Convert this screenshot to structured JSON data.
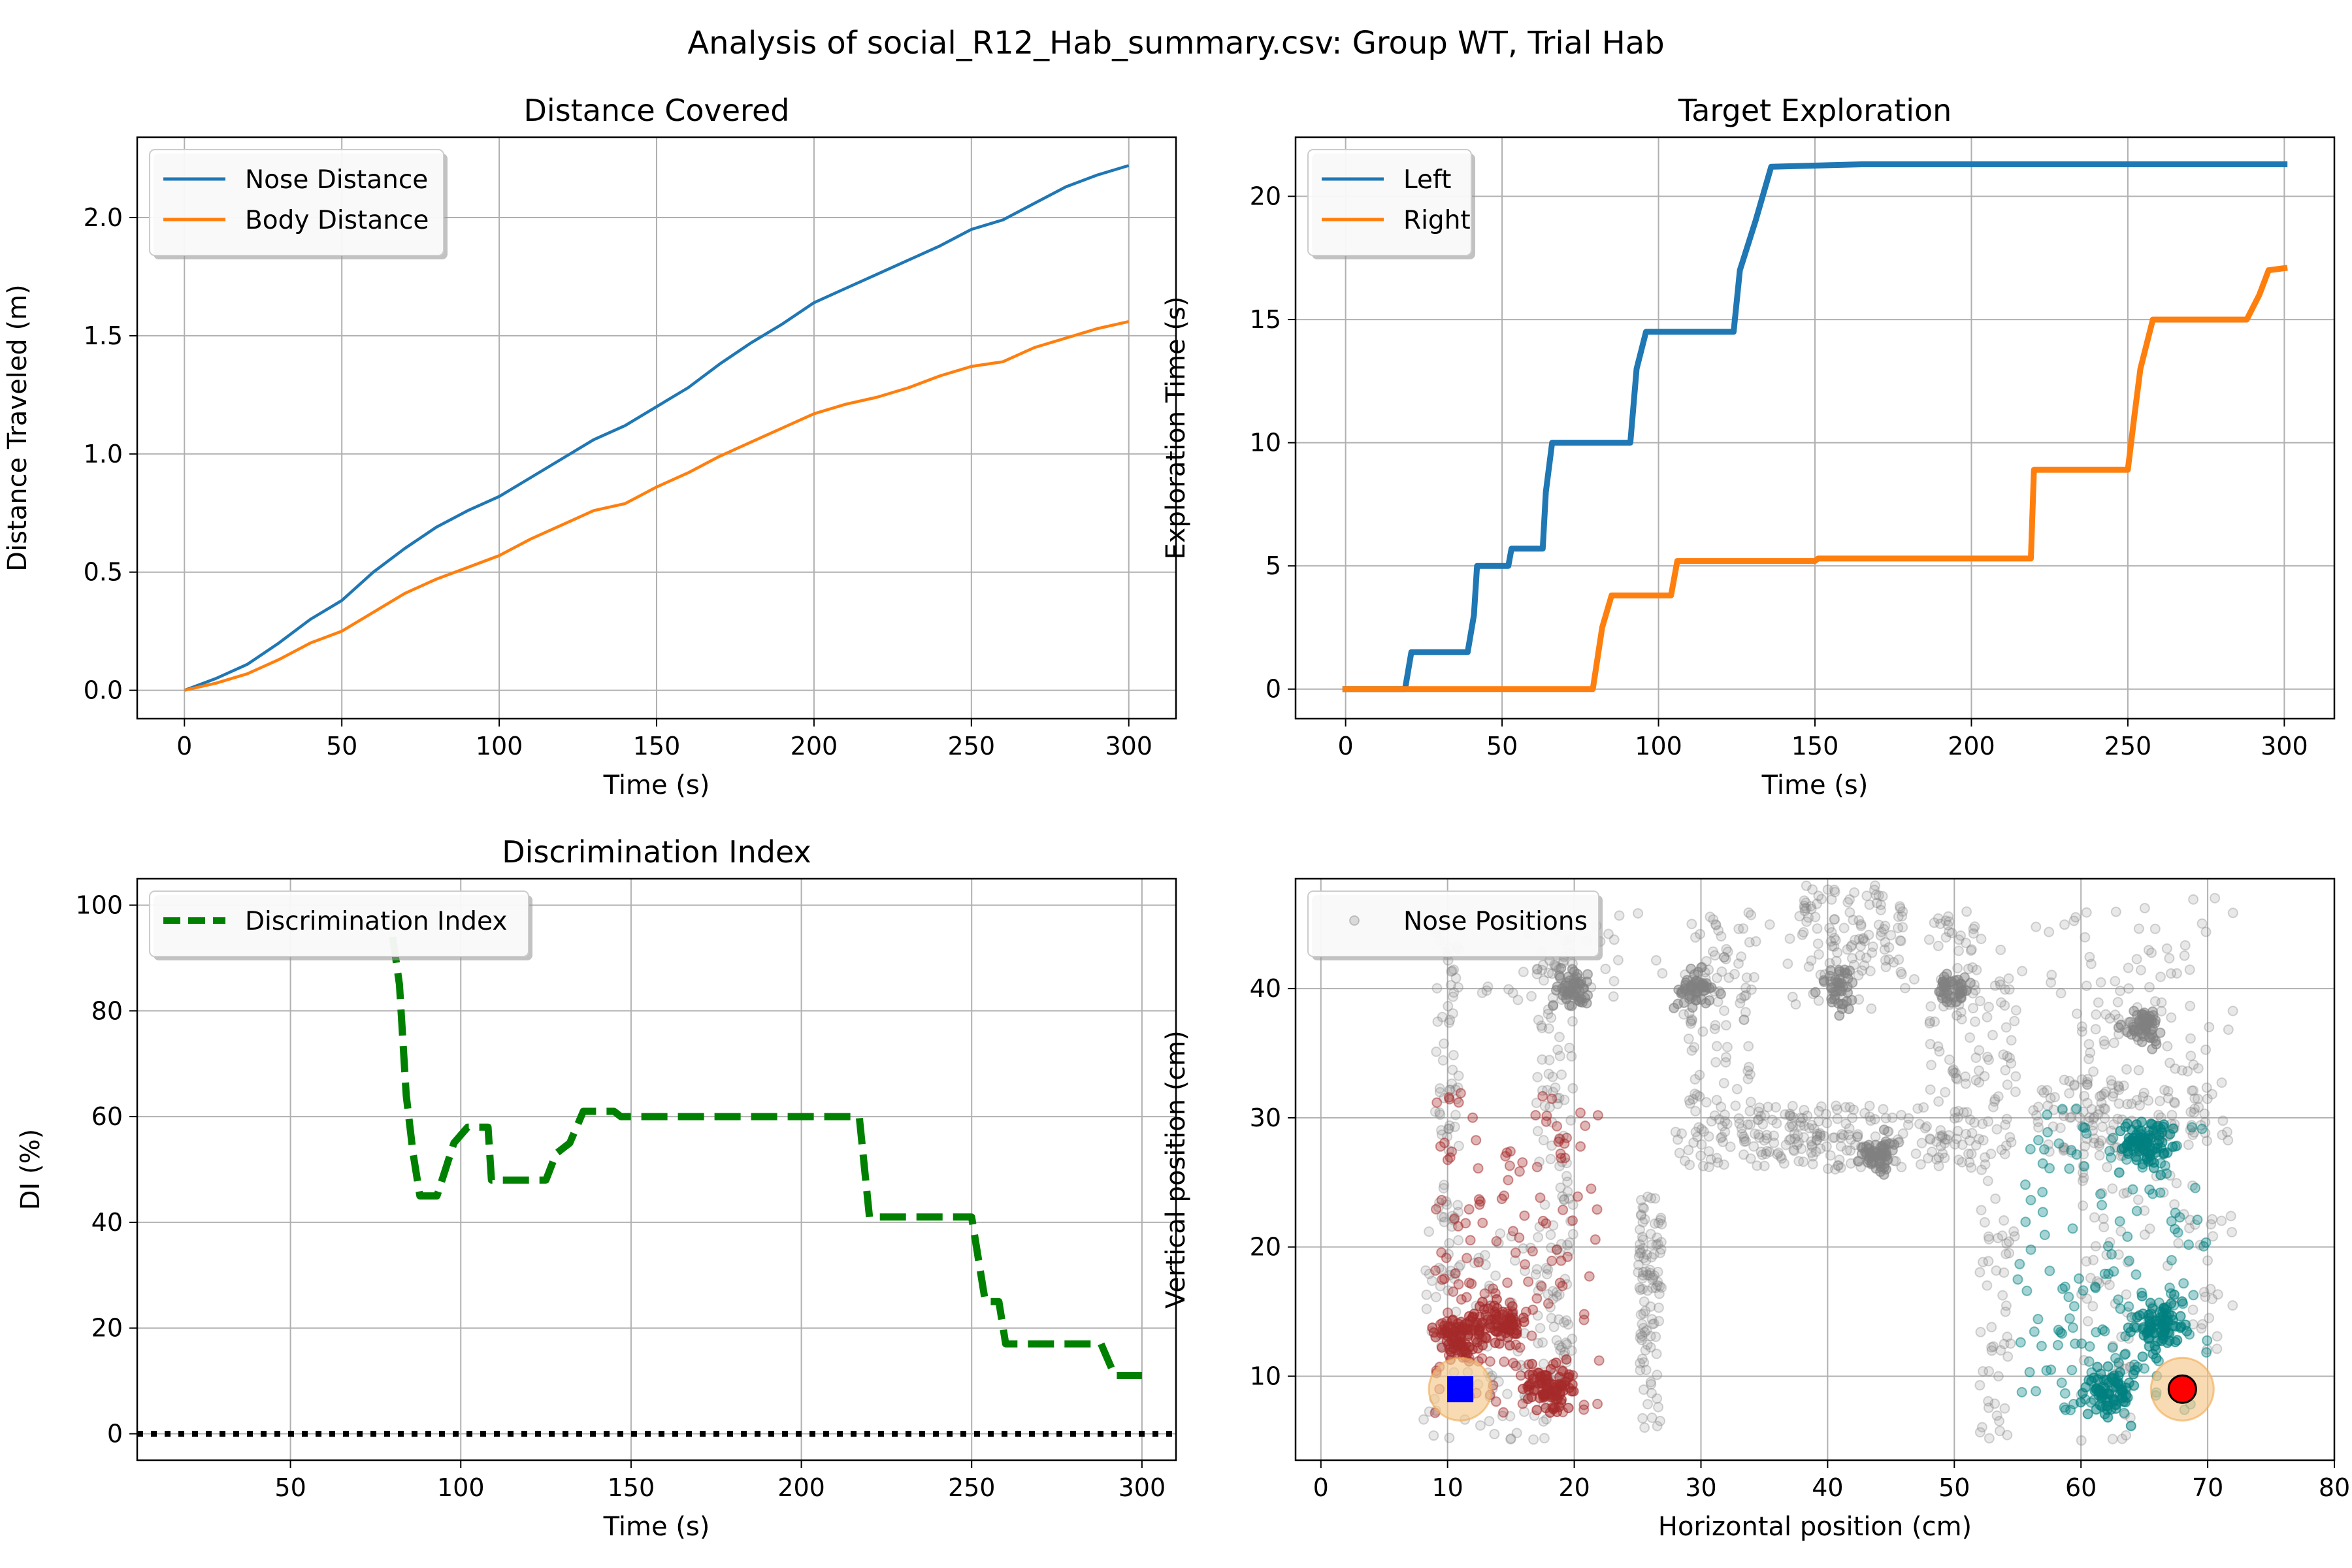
{
  "figure": {
    "suptitle": "Analysis of social_R12_Hab_summary.csv: Group WT, Trial Hab"
  },
  "colors": {
    "blue": "#1f77b4",
    "orange": "#ff7f0e",
    "green": "#008000",
    "grid": "#b0b0b0",
    "gray_points": "#808080",
    "red_points": "#a52a2a",
    "teal_points": "#008080",
    "object_halo": "#f5c78a"
  },
  "chart_data": [
    {
      "id": "distance",
      "type": "line",
      "title": "Distance Covered",
      "xlabel": "Time (s)",
      "ylabel": "Distance Traveled (m)",
      "xlim": [
        -15,
        315
      ],
      "ylim": [
        -0.12,
        2.34
      ],
      "xticks": [
        0,
        50,
        100,
        150,
        200,
        250,
        300
      ],
      "yticks": [
        0.0,
        0.5,
        1.0,
        1.5,
        2.0
      ],
      "ytick_labels": [
        "0.0",
        "0.5",
        "1.0",
        "1.5",
        "2.0"
      ],
      "grid": true,
      "legend": "upper-left",
      "series": [
        {
          "name": "Nose Distance",
          "color": "#1f77b4",
          "style": "solid",
          "points": [
            [
              0,
              0
            ],
            [
              10,
              0.05
            ],
            [
              20,
              0.11
            ],
            [
              30,
              0.2
            ],
            [
              40,
              0.3
            ],
            [
              50,
              0.38
            ],
            [
              60,
              0.5
            ],
            [
              70,
              0.6
            ],
            [
              80,
              0.69
            ],
            [
              90,
              0.76
            ],
            [
              100,
              0.82
            ],
            [
              110,
              0.9
            ],
            [
              120,
              0.98
            ],
            [
              130,
              1.06
            ],
            [
              140,
              1.12
            ],
            [
              150,
              1.2
            ],
            [
              160,
              1.28
            ],
            [
              170,
              1.38
            ],
            [
              180,
              1.47
            ],
            [
              190,
              1.55
            ],
            [
              200,
              1.64
            ],
            [
              210,
              1.7
            ],
            [
              220,
              1.76
            ],
            [
              230,
              1.82
            ],
            [
              240,
              1.88
            ],
            [
              250,
              1.95
            ],
            [
              260,
              1.99
            ],
            [
              270,
              2.06
            ],
            [
              280,
              2.13
            ],
            [
              290,
              2.18
            ],
            [
              300,
              2.22
            ]
          ]
        },
        {
          "name": "Body Distance",
          "color": "#ff7f0e",
          "style": "solid",
          "points": [
            [
              0,
              0
            ],
            [
              10,
              0.03
            ],
            [
              20,
              0.07
            ],
            [
              30,
              0.13
            ],
            [
              40,
              0.2
            ],
            [
              50,
              0.25
            ],
            [
              60,
              0.33
            ],
            [
              70,
              0.41
            ],
            [
              80,
              0.47
            ],
            [
              90,
              0.52
            ],
            [
              100,
              0.57
            ],
            [
              110,
              0.64
            ],
            [
              120,
              0.7
            ],
            [
              130,
              0.76
            ],
            [
              140,
              0.79
            ],
            [
              150,
              0.86
            ],
            [
              160,
              0.92
            ],
            [
              170,
              0.99
            ],
            [
              180,
              1.05
            ],
            [
              190,
              1.11
            ],
            [
              200,
              1.17
            ],
            [
              210,
              1.21
            ],
            [
              220,
              1.24
            ],
            [
              230,
              1.28
            ],
            [
              240,
              1.33
            ],
            [
              250,
              1.37
            ],
            [
              260,
              1.39
            ],
            [
              270,
              1.45
            ],
            [
              280,
              1.49
            ],
            [
              290,
              1.53
            ],
            [
              300,
              1.56
            ]
          ]
        }
      ]
    },
    {
      "id": "exploration",
      "type": "line",
      "title": "Target Exploration",
      "xlabel": "Time (s)",
      "ylabel": "Exploration Time (s)",
      "xlim": [
        -16,
        316
      ],
      "ylim": [
        -1.2,
        22.4
      ],
      "xticks": [
        0,
        50,
        100,
        150,
        200,
        250,
        300
      ],
      "yticks": [
        0,
        5,
        10,
        15,
        20
      ],
      "ytick_labels": [
        "0",
        "5",
        "10",
        "15",
        "20"
      ],
      "grid": true,
      "legend": "upper-left",
      "series": [
        {
          "name": "Left",
          "color": "#1f77b4",
          "style": "step",
          "points": [
            [
              -1,
              0
            ],
            [
              19,
              0
            ],
            [
              21,
              1.5
            ],
            [
              39,
              1.5
            ],
            [
              41,
              3.0
            ],
            [
              42,
              5.0
            ],
            [
              52,
              5.0
            ],
            [
              53,
              5.7
            ],
            [
              63,
              5.7
            ],
            [
              64,
              8.0
            ],
            [
              66,
              10.0
            ],
            [
              91,
              10.0
            ],
            [
              93,
              13.0
            ],
            [
              96,
              14.5
            ],
            [
              124,
              14.5
            ],
            [
              126,
              17.0
            ],
            [
              131,
              19.0
            ],
            [
              136,
              21.2
            ],
            [
              165,
              21.3
            ],
            [
              301,
              21.3
            ]
          ]
        },
        {
          "name": "Right",
          "color": "#ff7f0e",
          "style": "step",
          "points": [
            [
              -1,
              0
            ],
            [
              79,
              0
            ],
            [
              82,
              2.5
            ],
            [
              85,
              3.8
            ],
            [
              104,
              3.8
            ],
            [
              106,
              5.2
            ],
            [
              150,
              5.2
            ],
            [
              151,
              5.3
            ],
            [
              219,
              5.3
            ],
            [
              220,
              8.9
            ],
            [
              250,
              8.9
            ],
            [
              252,
              11.0
            ],
            [
              254,
              13.0
            ],
            [
              258,
              15.0
            ],
            [
              288,
              15.0
            ],
            [
              292,
              16.0
            ],
            [
              295,
              17.0
            ],
            [
              301,
              17.1
            ]
          ]
        }
      ]
    },
    {
      "id": "di",
      "type": "line",
      "title": "Discrimination Index",
      "xlabel": "Time (s)",
      "ylabel": "DI (%)",
      "xlim": [
        5,
        310
      ],
      "ylim": [
        -5,
        105
      ],
      "xticks": [
        50,
        100,
        150,
        200,
        250,
        300
      ],
      "yticks": [
        0,
        20,
        40,
        60,
        80,
        100
      ],
      "ytick_labels": [
        "0",
        "20",
        "40",
        "60",
        "80",
        "100"
      ],
      "grid": true,
      "legend": "upper-left",
      "series": [
        {
          "name": "Discrimination Index",
          "color": "#008000",
          "style": "dashed",
          "points": [
            [
              80,
              94
            ],
            [
              82,
              85
            ],
            [
              84,
              64
            ],
            [
              86,
              53
            ],
            [
              88,
              45
            ],
            [
              93,
              45
            ],
            [
              98,
              55
            ],
            [
              102,
              58
            ],
            [
              108,
              58
            ],
            [
              109,
              48
            ],
            [
              125,
              48
            ],
            [
              128,
              53
            ],
            [
              132,
              55
            ],
            [
              136,
              61
            ],
            [
              145,
              61
            ],
            [
              147,
              60
            ],
            [
              217,
              60
            ],
            [
              220,
              41
            ],
            [
              250,
              41
            ],
            [
              254,
              25
            ],
            [
              258,
              25
            ],
            [
              260,
              17
            ],
            [
              288,
              17
            ],
            [
              292,
              11
            ],
            [
              300,
              11
            ]
          ]
        },
        {
          "name": "",
          "color": "#000000",
          "style": "dotted-baseline",
          "points": [
            [
              5,
              0
            ],
            [
              310,
              0
            ]
          ]
        }
      ]
    },
    {
      "id": "positions",
      "type": "scatter",
      "title": "",
      "xlabel": "Horizontal position (cm)",
      "ylabel": "Vertical position (cm)",
      "xlim": [
        -2,
        80
      ],
      "ylim": [
        3.5,
        48.5
      ],
      "xticks": [
        0,
        10,
        20,
        30,
        40,
        50,
        60,
        70,
        80
      ],
      "yticks": [
        10,
        20,
        30,
        40
      ],
      "ytick_labels": [
        "10",
        "20",
        "30",
        "40"
      ],
      "grid": true,
      "legend": "upper-left",
      "series": [
        {
          "name": "Nose Positions",
          "color": "#808080",
          "style": "scatter-gray"
        },
        {
          "name": "",
          "color": "#a52a2a",
          "style": "scatter-red"
        },
        {
          "name": "",
          "color": "#008080",
          "style": "scatter-teal"
        }
      ],
      "objects": [
        {
          "shape": "square",
          "x": 11,
          "y": 9,
          "color": "#0000ff"
        },
        {
          "shape": "circle",
          "x": 68,
          "y": 9,
          "color": "#ff0000"
        }
      ]
    }
  ]
}
